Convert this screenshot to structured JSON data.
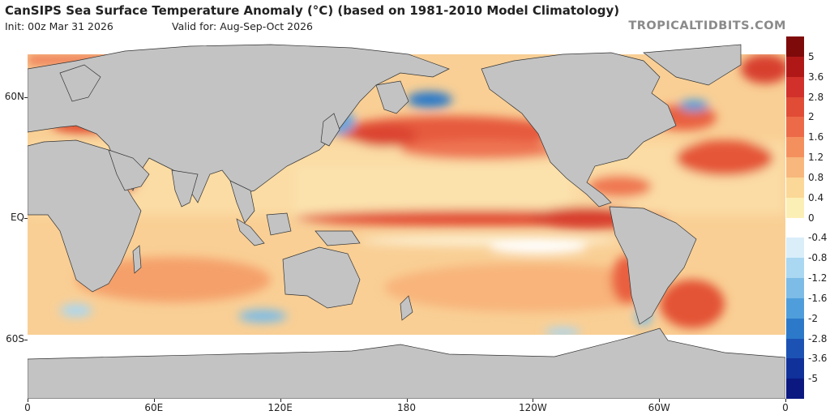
{
  "title": "CanSIPS Sea Surface Temperature Anomaly (°C) (based on 1981-2010 Model Climatology)",
  "init": "Init: 00z Mar 31 2026",
  "valid": "Valid for: Aug-Sep-Oct 2026",
  "watermark": "TROPICALTIDBITS.COM",
  "lat_labels": [
    {
      "text": "60N",
      "lat": 60
    },
    {
      "text": "EQ",
      "lat": 0
    },
    {
      "text": "60S",
      "lat": -60
    }
  ],
  "lon_labels": [
    {
      "text": "0",
      "lon": 0
    },
    {
      "text": "60E",
      "lon": 60
    },
    {
      "text": "120E",
      "lon": 120
    },
    {
      "text": "180",
      "lon": 180
    },
    {
      "text": "120W",
      "lon": 240
    },
    {
      "text": "60W",
      "lon": 300
    },
    {
      "text": "0",
      "lon": 360
    }
  ],
  "colorbar": {
    "labels": [
      "5",
      "3.6",
      "2.8",
      "2",
      "1.6",
      "1.2",
      "0.8",
      "0.4",
      "0",
      "-0.4",
      "-0.8",
      "-1.2",
      "-1.6",
      "-2",
      "-2.8",
      "-3.6",
      "-5"
    ],
    "colors": [
      "#7f0a0a",
      "#b01818",
      "#d2302a",
      "#e04c36",
      "#ec6a48",
      "#f4905e",
      "#f8b77c",
      "#fbd897",
      "#fcefb6",
      "#ffffff",
      "#d9eef9",
      "#aad7f1",
      "#7cbce6",
      "#4f9edb",
      "#2c79c9",
      "#1c52b4",
      "#10309a",
      "#0a1880"
    ]
  },
  "legend_colors": {
    "land": "#c3c3c3",
    "ocean_base": "#f9c98c",
    "sea_ice": "#ffffff"
  }
}
